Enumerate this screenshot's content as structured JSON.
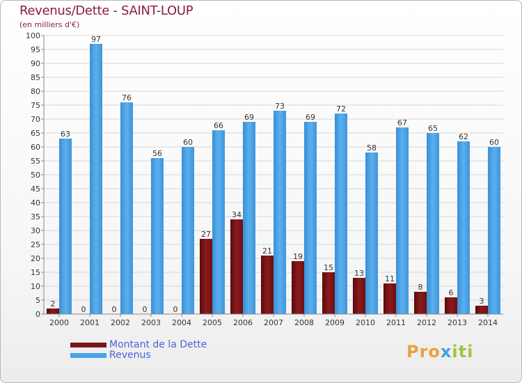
{
  "header": {
    "title": "Revenus/Dette - SAINT-LOUP",
    "subtitle": "(en milliers d'€)"
  },
  "chart_data": {
    "type": "bar",
    "title": "Revenus/Dette - SAINT-LOUP",
    "subtitle": "(en milliers d'€)",
    "categories": [
      "2000",
      "2001",
      "2002",
      "2003",
      "2004",
      "2005",
      "2006",
      "2007",
      "2008",
      "2009",
      "2010",
      "2011",
      "2012",
      "2013",
      "2014"
    ],
    "series": [
      {
        "name": "Montant de la Dette",
        "color": "#7a1416",
        "values": [
          2,
          0,
          0,
          0,
          0,
          27,
          34,
          21,
          19,
          15,
          13,
          11,
          8,
          6,
          3
        ]
      },
      {
        "name": "Revenus",
        "color": "#4aa3e6",
        "values": [
          63,
          97,
          76,
          56,
          60,
          66,
          69,
          73,
          69,
          72,
          58,
          67,
          65,
          62,
          60
        ]
      }
    ],
    "ylim": [
      0,
      100
    ],
    "ytick_step": 5,
    "grid": true,
    "legend_position": "bottom-left"
  },
  "legend": {
    "items": [
      {
        "label": "Montant de la Dette",
        "color": "#7a1416"
      },
      {
        "label": "Revenus",
        "color": "#4aa3e6"
      }
    ]
  },
  "logo": {
    "part1": "Pro",
    "part2": "x",
    "part3": "iti"
  }
}
